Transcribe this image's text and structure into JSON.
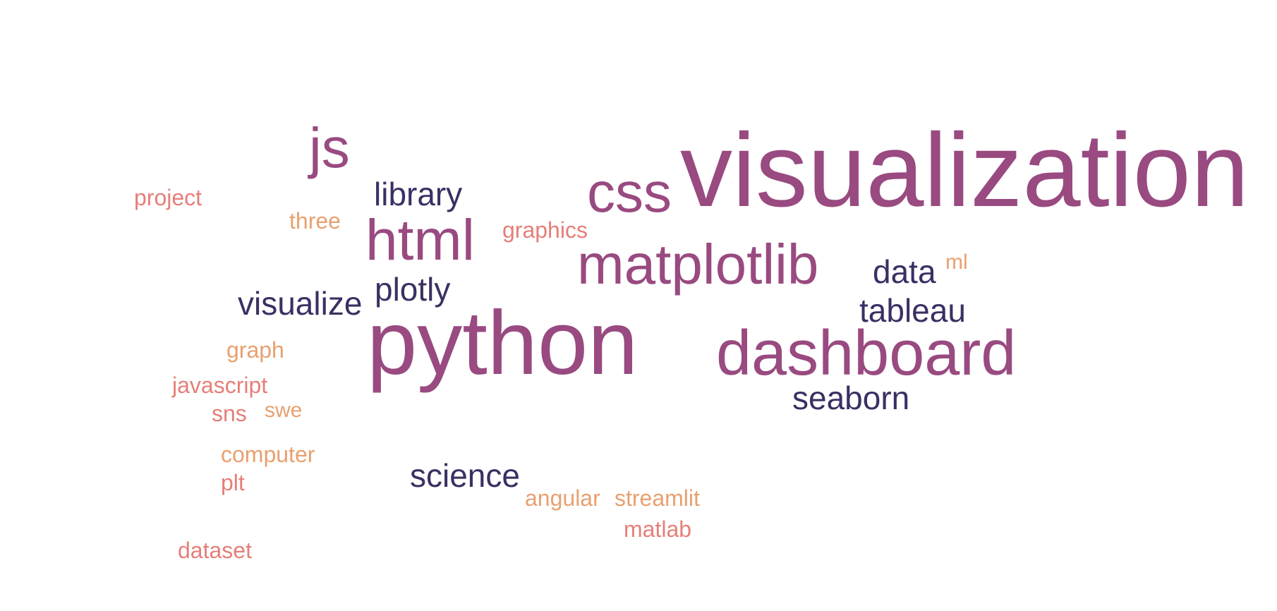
{
  "word_cloud": {
    "palette": {
      "tier1": "#994a80",
      "tier2": "#3b2f63",
      "tier3": "#e57f79",
      "tier4": "#e8a070"
    },
    "words": [
      {
        "id": "visualization",
        "text": "visualization",
        "tier": "tier1"
      },
      {
        "id": "python",
        "text": "python",
        "tier": "tier1"
      },
      {
        "id": "dashboard",
        "text": "dashboard",
        "tier": "tier1"
      },
      {
        "id": "matplotlib",
        "text": "matplotlib",
        "tier": "tier1"
      },
      {
        "id": "html",
        "text": "html",
        "tier": "tier1"
      },
      {
        "id": "css",
        "text": "css",
        "tier": "tier1"
      },
      {
        "id": "js",
        "text": "js",
        "tier": "tier1"
      },
      {
        "id": "library",
        "text": "library",
        "tier": "tier2"
      },
      {
        "id": "visualize",
        "text": "visualize",
        "tier": "tier2"
      },
      {
        "id": "plotly",
        "text": "plotly",
        "tier": "tier2"
      },
      {
        "id": "data",
        "text": "data",
        "tier": "tier2"
      },
      {
        "id": "tableau",
        "text": "tableau",
        "tier": "tier2"
      },
      {
        "id": "seaborn",
        "text": "seaborn",
        "tier": "tier2"
      },
      {
        "id": "science",
        "text": "science",
        "tier": "tier2"
      },
      {
        "id": "project",
        "text": "project",
        "tier": "tier3"
      },
      {
        "id": "three",
        "text": "three",
        "tier": "tier4"
      },
      {
        "id": "graphics",
        "text": "graphics",
        "tier": "tier3"
      },
      {
        "id": "ml",
        "text": "ml",
        "tier": "tier4"
      },
      {
        "id": "graph",
        "text": "graph",
        "tier": "tier4"
      },
      {
        "id": "javascript",
        "text": "javascript",
        "tier": "tier3"
      },
      {
        "id": "sns",
        "text": "sns",
        "tier": "tier3"
      },
      {
        "id": "swe",
        "text": "swe",
        "tier": "tier4"
      },
      {
        "id": "computer",
        "text": "computer",
        "tier": "tier4"
      },
      {
        "id": "plt",
        "text": "plt",
        "tier": "tier3"
      },
      {
        "id": "angular",
        "text": "angular",
        "tier": "tier4"
      },
      {
        "id": "streamlit",
        "text": "streamlit",
        "tier": "tier4"
      },
      {
        "id": "matlab",
        "text": "matlab",
        "tier": "tier3"
      },
      {
        "id": "dataset",
        "text": "dataset",
        "tier": "tier3"
      }
    ]
  }
}
